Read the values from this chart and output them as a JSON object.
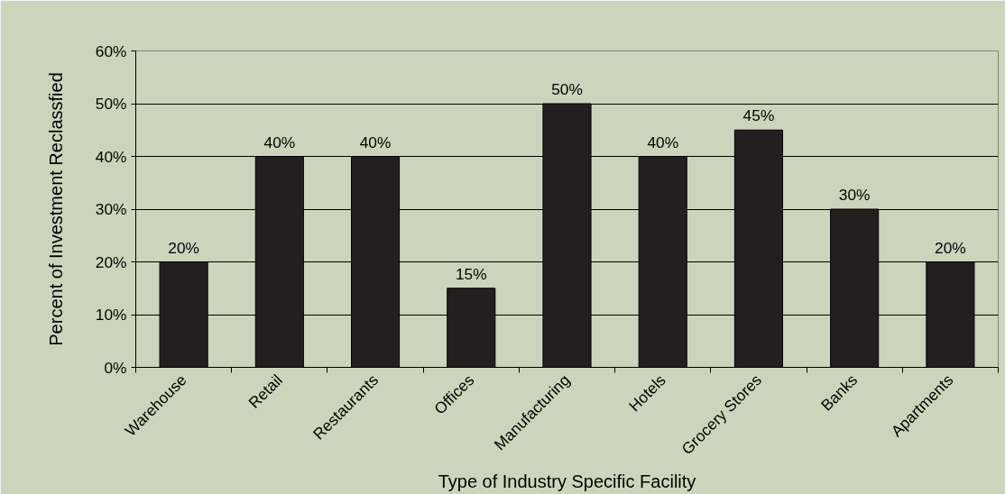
{
  "chart_data": {
    "type": "bar",
    "xlabel": "Type of Industry Specific Facility",
    "ylabel": "Percent of Investment Reclassfied",
    "categories": [
      "Warehouse",
      "Retail",
      "Restaurants",
      "Offices",
      "Manufacturing",
      "Hotels",
      "Grocery Stores",
      "Banks",
      "Apartments"
    ],
    "values": [
      20,
      40,
      40,
      15,
      50,
      40,
      45,
      30,
      20
    ],
    "value_labels": [
      "20%",
      "40%",
      "40%",
      "15%",
      "50%",
      "40%",
      "45%",
      "30%",
      "20%"
    ],
    "color": "#231f20",
    "ylim": [
      0,
      60
    ],
    "yticks": [
      {
        "value": 0,
        "label": "0%"
      },
      {
        "value": 10,
        "label": "10%"
      },
      {
        "value": 20,
        "label": "20%"
      },
      {
        "value": 30,
        "label": "30%"
      },
      {
        "value": 40,
        "label": "40%"
      },
      {
        "value": 50,
        "label": "50%"
      },
      {
        "value": 60,
        "label": "60%"
      }
    ],
    "grid": "y"
  }
}
